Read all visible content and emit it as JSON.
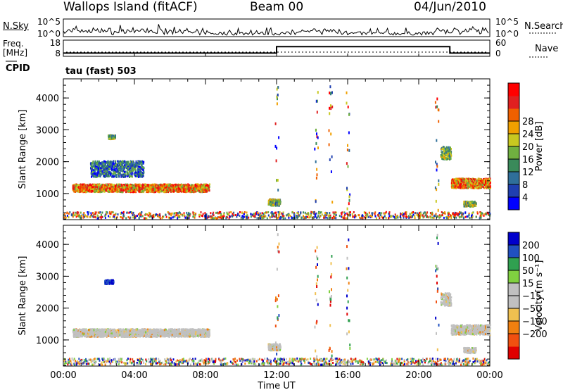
{
  "header": {
    "station": "Wallops Island (fitACF)",
    "beam": "Beam 00",
    "date": "04/Jun/2010"
  },
  "panels": {
    "nsky": {
      "label": "N.Sky",
      "ticks": [
        "10^5",
        "10^0"
      ],
      "right_ticks": [
        "10^5",
        "10^0"
      ],
      "right_label": "N.Search"
    },
    "freq": {
      "label_line1": "Freq.",
      "label_line2": "[MHz]",
      "ticks": [
        "18",
        "8"
      ],
      "right_ticks": [
        "60",
        "0"
      ],
      "right_label": "Nave"
    },
    "cpid": {
      "label": "CPID",
      "program": "tau (fast) 503"
    }
  },
  "chart_data": [
    {
      "type": "line",
      "name": "N.Sky",
      "y_scale": "log",
      "ylim": [
        1,
        100000
      ]
    },
    {
      "type": "line",
      "name": "Freq. / Nave",
      "x": [
        "00:00",
        "12:00",
        "12:00",
        "21:45",
        "21:45",
        "24:00"
      ],
      "series": [
        {
          "values": [
            10,
            10,
            14,
            14,
            10,
            10
          ]
        }
      ],
      "ylim": [
        8,
        18
      ]
    },
    {
      "type": "heatmap",
      "ylabel": "Slant Range [km]",
      "xlabel": "Time UT",
      "x_ticks": [
        "00:00",
        "04:00",
        "08:00",
        "12:00",
        "16:00",
        "20:00",
        "00:00"
      ],
      "y_ticks": [
        1000,
        2000,
        3000,
        4000
      ],
      "xlim": [
        0,
        24
      ],
      "ylim": [
        180,
        4600
      ],
      "colorbar_label": "Power [dB]",
      "colorbar_ticks": [
        4,
        8,
        12,
        16,
        20,
        24,
        28
      ],
      "colors": [
        "#0000ff",
        "#1f3fb0",
        "#2f6f9a",
        "#3a8a5a",
        "#70b040",
        "#c8c820",
        "#f0a000",
        "#f06000",
        "#e02020",
        "#ff0000"
      ],
      "echo_regions": [
        {
          "t0": 0.5,
          "t1": 8.2,
          "r": 1200,
          "spread": 120,
          "level": "high"
        },
        {
          "t0": 2.5,
          "t1": 2.9,
          "r": 2800,
          "spread": 60,
          "level": "mid"
        },
        {
          "t0": 1.5,
          "t1": 4.5,
          "r": 1800,
          "spread": 250,
          "level": "low"
        },
        {
          "t0": 11.5,
          "t1": 12.2,
          "r": 750,
          "spread": 100,
          "level": "mid"
        },
        {
          "t0": 21.2,
          "t1": 21.8,
          "r": 2300,
          "spread": 200,
          "level": "mid"
        },
        {
          "t0": 21.8,
          "t1": 24.0,
          "r": 1350,
          "spread": 150,
          "level": "high"
        },
        {
          "t0": 22.5,
          "t1": 23.2,
          "r": 700,
          "spread": 80,
          "level": "mid"
        }
      ]
    },
    {
      "type": "heatmap",
      "ylabel": "Slant Range [km]",
      "xlabel": "Time UT",
      "x_ticks": [
        "00:00",
        "04:00",
        "08:00",
        "12:00",
        "16:00",
        "20:00",
        "00:00"
      ],
      "y_ticks": [
        1000,
        2000,
        3000,
        4000
      ],
      "xlim": [
        0,
        24
      ],
      "ylim": [
        180,
        4600
      ],
      "colorbar_label": "Velocity [m s⁻¹]",
      "colorbar_ticks": [
        200,
        100,
        50,
        15,
        -15,
        -50,
        -100,
        -200
      ],
      "colors": [
        "#0000cc",
        "#2050c0",
        "#30a050",
        "#80d040",
        "#c0c0c0",
        "#c0c0c0",
        "#f0c050",
        "#f08010",
        "#f05010",
        "#e00000"
      ],
      "echo_regions": [
        {
          "t0": 0.5,
          "t1": 8.2,
          "r": 1250,
          "spread": 120,
          "level": "ground"
        },
        {
          "t0": 2.3,
          "t1": 2.8,
          "r": 2850,
          "spread": 60,
          "level": "positive"
        },
        {
          "t0": 11.5,
          "t1": 12.2,
          "r": 800,
          "spread": 100,
          "level": "ground"
        },
        {
          "t0": 21.2,
          "t1": 21.8,
          "r": 2300,
          "spread": 200,
          "level": "ground"
        },
        {
          "t0": 21.8,
          "t1": 24.0,
          "r": 1350,
          "spread": 150,
          "level": "ground"
        },
        {
          "t0": 22.5,
          "t1": 23.2,
          "r": 700,
          "spread": 80,
          "level": "ground"
        }
      ]
    }
  ]
}
